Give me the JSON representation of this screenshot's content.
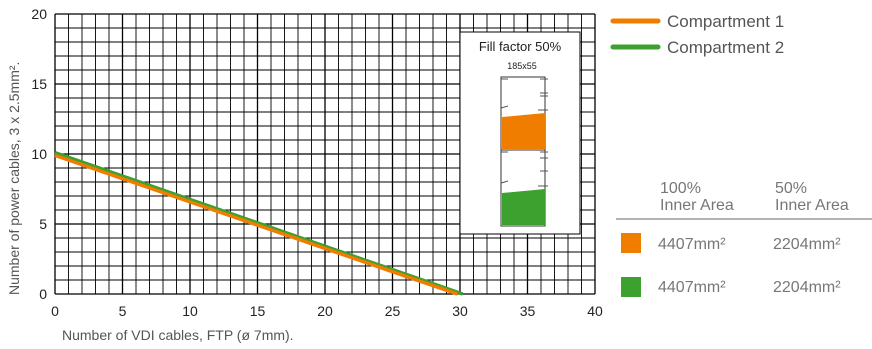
{
  "chart_data": {
    "type": "line",
    "xlabel": "Number of VDI cables, FTP (ø 7mm).",
    "ylabel": "Number of power cables, 3 x 2.5mm².",
    "xlim": [
      0,
      40
    ],
    "ylim": [
      0,
      20
    ],
    "x_ticks": [
      "0",
      "5",
      "10",
      "15",
      "20",
      "25",
      "30",
      "35",
      "40"
    ],
    "y_ticks": [
      "0",
      "5",
      "10",
      "15",
      "20"
    ],
    "grid": true,
    "minor_grid_step": 1,
    "legend_position": "right-top",
    "series": [
      {
        "name": "Compartment 1",
        "color": "#f07d00",
        "x": [
          0,
          29.8
        ],
        "y": [
          9.9,
          0
        ]
      },
      {
        "name": "Compartment 2",
        "color": "#3ca12e",
        "x": [
          0,
          30.2
        ],
        "y": [
          10.1,
          0
        ]
      }
    ]
  },
  "inset": {
    "title": "Fill factor 50%",
    "subtitle": "185x55",
    "fill_colors": [
      "#f07d00",
      "#3ca12e"
    ]
  },
  "area_table": {
    "headers": [
      [
        "100%",
        "Inner Area"
      ],
      [
        "50%",
        "Inner Area"
      ]
    ],
    "rows": [
      {
        "color": "#f07d00",
        "full": "4407mm²",
        "half": "2204mm²"
      },
      {
        "color": "#3ca12e",
        "full": "4407mm²",
        "half": "2204mm²"
      }
    ]
  }
}
